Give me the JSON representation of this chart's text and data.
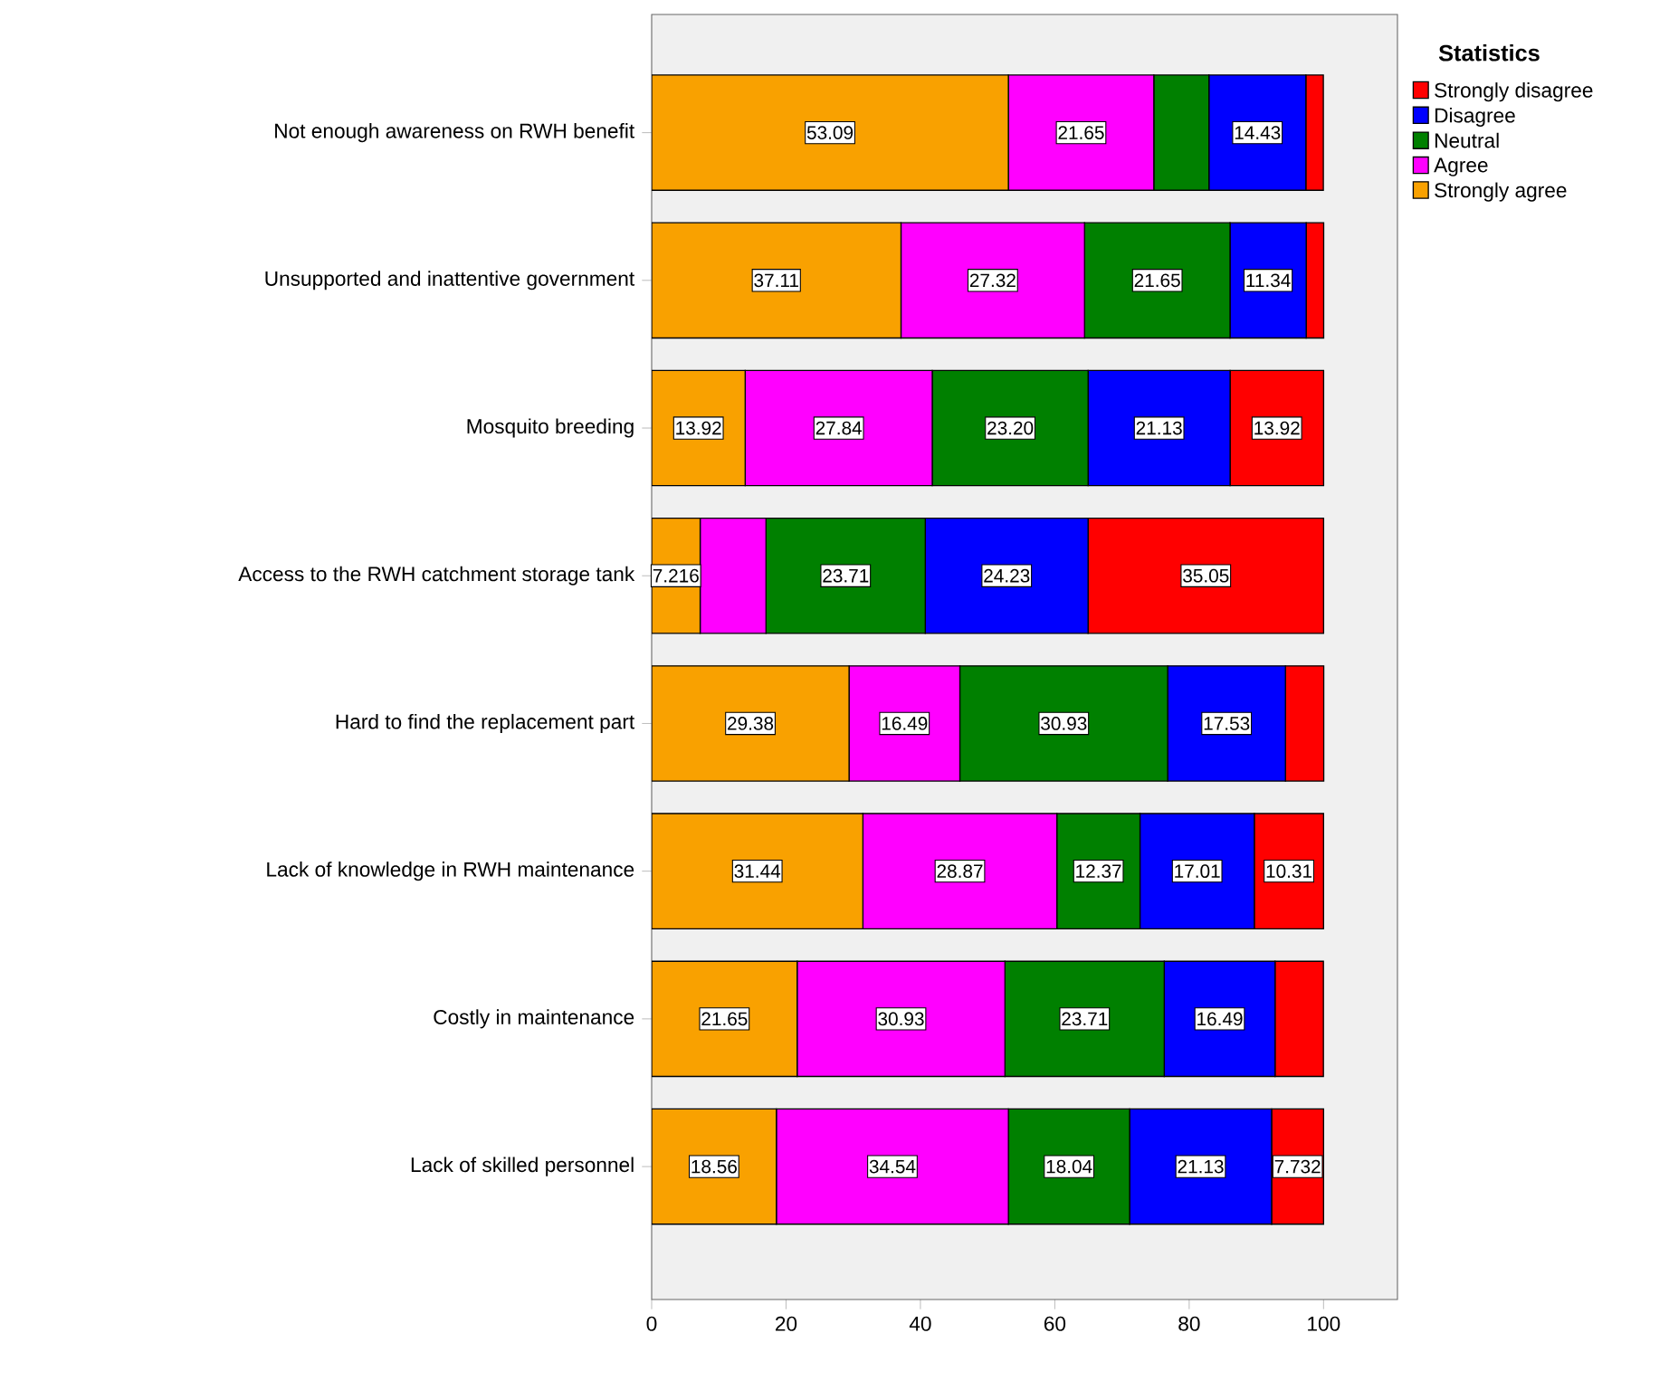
{
  "chart_data": {
    "type": "bar",
    "orientation": "horizontal",
    "stacked": true,
    "legend": "right",
    "legend_title": "Statistics",
    "categories": [
      "Not enough awareness on RWH benefit",
      "Unsupported and inattentive government",
      "Mosquito breeding",
      "Access to the RWH catchment storage tank",
      "Hard to find the replacement part",
      "Lack of knowledge in RWH maintenance",
      "Costly in maintenance",
      "Lack of skilled personnel"
    ],
    "xlim": [
      0,
      111
    ],
    "xticks": [
      0,
      20,
      40,
      60,
      80,
      100
    ],
    "series": [
      {
        "name": "Strongly agree",
        "color": "#f9a100",
        "values": [
          53.09,
          37.11,
          13.92,
          7.216,
          29.38,
          31.44,
          21.65,
          18.56
        ],
        "value_labels": [
          "53.09",
          "37.11",
          "13.92",
          "7.216",
          "29.38",
          "31.44",
          "21.65",
          "18.56"
        ]
      },
      {
        "name": "Agree",
        "color": "#ff00ff",
        "values": [
          21.65,
          27.32,
          27.84,
          9.8,
          16.49,
          28.87,
          30.93,
          34.54
        ],
        "value_labels": [
          "21.65",
          "27.32",
          "27.84",
          null,
          "16.49",
          "28.87",
          "30.93",
          "34.54"
        ]
      },
      {
        "name": "Neutral",
        "color": "#008000",
        "values": [
          8.2,
          21.65,
          23.2,
          23.71,
          30.93,
          12.37,
          23.71,
          18.04
        ],
        "value_labels": [
          null,
          "21.65",
          "23.20",
          "23.71",
          "30.93",
          "12.37",
          "23.71",
          "18.04"
        ]
      },
      {
        "name": "Disagree",
        "color": "#0000ff",
        "values": [
          14.43,
          11.34,
          21.13,
          24.23,
          17.53,
          17.01,
          16.49,
          21.13
        ],
        "value_labels": [
          "14.43",
          "11.34",
          "21.13",
          "24.23",
          "17.53",
          "17.01",
          "16.49",
          "21.13"
        ]
      },
      {
        "name": "Strongly disagree",
        "color": "#ff0000",
        "values": [
          2.6,
          2.6,
          13.92,
          35.05,
          5.7,
          10.31,
          7.2,
          7.732
        ],
        "value_labels": [
          null,
          null,
          "13.92",
          "35.05",
          null,
          "10.31",
          null,
          "7.732"
        ]
      }
    ]
  }
}
